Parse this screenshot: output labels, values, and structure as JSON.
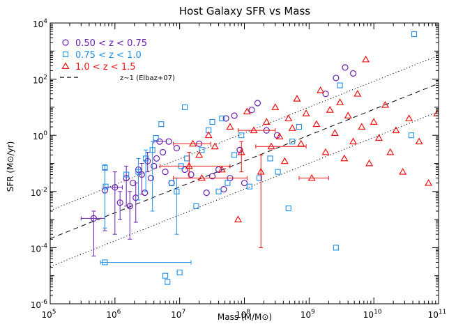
{
  "chart_data": {
    "type": "scatter",
    "title": "Host Galaxy SFR vs Mass",
    "xlabel": "Mass (M/M⊙)",
    "ylabel": "SFR (M⊙/yr)",
    "xscale": "log",
    "yscale": "log",
    "xlim": [
      100000,
      100000000000
    ],
    "ylim": [
      1e-06,
      10000
    ],
    "x_ticks": [
      {
        "value": 100000,
        "base": "10",
        "exp": "5"
      },
      {
        "value": 1000000,
        "base": "10",
        "exp": "6"
      },
      {
        "value": 10000000,
        "base": "10",
        "exp": "7"
      },
      {
        "value": 100000000,
        "base": "10",
        "exp": "8"
      },
      {
        "value": 1000000000,
        "base": "10",
        "exp": "9"
      },
      {
        "value": 10000000000,
        "base": "10",
        "exp": "10"
      },
      {
        "value": 100000000000,
        "base": "10",
        "exp": "11"
      }
    ],
    "y_ticks": [
      {
        "value": 1e-06,
        "base": "10",
        "exp": "-6"
      },
      {
        "value": 0.0001,
        "base": "10",
        "exp": "-4"
      },
      {
        "value": 0.01,
        "base": "10",
        "exp": "-2"
      },
      {
        "value": 1,
        "base": "10",
        "exp": "0"
      },
      {
        "value": 100,
        "base": "10",
        "exp": "2"
      },
      {
        "value": 10000,
        "base": "10",
        "exp": "4"
      }
    ],
    "legend_position": "top-left",
    "legend": [
      {
        "label": "0.50 < z < 0.75",
        "marker": "circle",
        "color": "#6a1fb0"
      },
      {
        "label": "0.75 < z < 1.0",
        "marker": "square",
        "color": "#1e90e8"
      },
      {
        "label": "1.0 < z < 1.5",
        "marker": "triangle",
        "color": "#ee1111"
      },
      {
        "label": "z~1 (Elbaz+07)",
        "marker": "dashed-line",
        "color": "#000000"
      }
    ],
    "reference_lines": [
      {
        "style": "dashed",
        "x": [
          100000,
          100000000000
        ],
        "y": [
          0.00021,
          70
        ]
      },
      {
        "style": "dotted",
        "x": [
          100000,
          100000000000
        ],
        "y": [
          0.0021,
          700
        ]
      },
      {
        "style": "dotted",
        "x": [
          100000,
          100000000000
        ],
        "y": [
          2.1e-05,
          7
        ]
      }
    ],
    "series": [
      {
        "name": "0.50 < z < 0.75",
        "marker": "circle",
        "color": "#6a1fb0",
        "points": [
          {
            "x": 470000,
            "y": 0.0011,
            "xerr": [
              300000,
              700000
            ],
            "yerr": [
              5e-05,
              0.002
            ]
          },
          {
            "x": 700000,
            "y": 0.011,
            "yerr": [
              0.0004,
              0.06
            ]
          },
          {
            "x": 1000000,
            "y": 0.014,
            "xerr": [
              700000,
              1300000
            ],
            "yerr": [
              0.0003,
              0.05
            ]
          },
          {
            "x": 1200000,
            "y": 0.004,
            "yerr": [
              0.001,
              0.01
            ]
          },
          {
            "x": 1500000,
            "y": 0.03,
            "yerr": [
              0.003,
              0.08
            ]
          },
          {
            "x": 1700000,
            "y": 0.003,
            "yerr": [
              0.0002,
              0.01
            ]
          },
          {
            "x": 1900000,
            "y": 0.02
          },
          {
            "x": 2100000,
            "y": 0.006,
            "yerr": [
              0.0008,
              0.02
            ]
          },
          {
            "x": 2300000,
            "y": 0.06
          },
          {
            "x": 2600000,
            "y": 0.04,
            "yerr": [
              0.008,
              0.1
            ]
          },
          {
            "x": 2900000,
            "y": 0.009
          },
          {
            "x": 3200000,
            "y": 0.12,
            "yerr": [
              0.05,
              0.25
            ]
          },
          {
            "x": 3600000,
            "y": 0.03
          },
          {
            "x": 4000000,
            "y": 0.08
          },
          {
            "x": 4400000,
            "y": 0.15
          },
          {
            "x": 4900000,
            "y": 0.6,
            "xerr": [
              4000000,
              6200000
            ]
          },
          {
            "x": 5500000,
            "y": 0.25
          },
          {
            "x": 6000000,
            "y": 0.05
          },
          {
            "x": 6800000,
            "y": 0.6
          },
          {
            "x": 7500000,
            "y": 0.02
          },
          {
            "x": 9000000,
            "y": 0.35
          },
          {
            "x": 12000000,
            "y": 0.06
          },
          {
            "x": 15000000,
            "y": 0.04
          },
          {
            "x": 20000000,
            "y": 0.5
          },
          {
            "x": 26000000,
            "y": 0.009
          },
          {
            "x": 32000000,
            "y": 0.035
          },
          {
            "x": 40000000,
            "y": 0.06
          },
          {
            "x": 48000000,
            "y": 0.012
          },
          {
            "x": 52000000,
            "y": 4.0
          },
          {
            "x": 60000000,
            "y": 0.03
          },
          {
            "x": 70000000,
            "y": 5.0
          },
          {
            "x": 85000000,
            "y": 0.3
          },
          {
            "x": 100000000,
            "y": 0.02
          },
          {
            "x": 130000000,
            "y": 8.0
          },
          {
            "x": 160000000,
            "y": 14
          },
          {
            "x": 220000000,
            "y": 1.5
          },
          {
            "x": 320000000,
            "y": 1.0
          },
          {
            "x": 1800000000,
            "y": 30
          },
          {
            "x": 2600000000,
            "y": 110
          },
          {
            "x": 3600000000,
            "y": 260
          },
          {
            "x": 4800000000,
            "y": 160
          }
        ]
      },
      {
        "name": "0.75 < z < 1.0",
        "marker": "square",
        "color": "#1e90e8",
        "points": [
          {
            "x": 700000,
            "y": 3e-05,
            "xerr": [
              600000,
              15000000
            ]
          },
          {
            "x": 700000,
            "y": 0.07,
            "yerr": [
              0.0005,
              0.09
            ]
          },
          {
            "x": 720000,
            "y": 0.015
          },
          {
            "x": 1500000,
            "y": 0.04
          },
          {
            "x": 2300000,
            "y": 0.05,
            "yerr": [
              0.005,
              0.15
            ]
          },
          {
            "x": 3000000,
            "y": 0.15,
            "yerr": [
              0.01,
              0.3
            ]
          },
          {
            "x": 3800000,
            "y": 0.3,
            "yerr": [
              0.002,
              0.6
            ]
          },
          {
            "x": 4300000,
            "y": 0.8
          },
          {
            "x": 5200000,
            "y": 2.5
          },
          {
            "x": 6000000,
            "y": 1e-05
          },
          {
            "x": 6500000,
            "y": 6e-06
          },
          {
            "x": 7500000,
            "y": 0.02
          },
          {
            "x": 9000000,
            "y": 0.01,
            "yerr": [
              0.0003,
              0.03
            ]
          },
          {
            "x": 10000000,
            "y": 1.3e-05
          },
          {
            "x": 10500000,
            "y": 0.08
          },
          {
            "x": 12000000,
            "y": 10.0
          },
          {
            "x": 13000000,
            "y": 0.15
          },
          {
            "x": 18000000,
            "y": 0.003
          },
          {
            "x": 22000000,
            "y": 0.3
          },
          {
            "x": 28000000,
            "y": 1.5
          },
          {
            "x": 32000000,
            "y": 3.0
          },
          {
            "x": 40000000,
            "y": 0.01
          },
          {
            "x": 45000000,
            "y": 4.0
          },
          {
            "x": 55000000,
            "y": 0.02
          },
          {
            "x": 70000000,
            "y": 0.2
          },
          {
            "x": 90000000,
            "y": 1.0
          },
          {
            "x": 120000000,
            "y": 0.015
          },
          {
            "x": 170000000,
            "y": 0.03
          },
          {
            "x": 250000000,
            "y": 0.15
          },
          {
            "x": 330000000,
            "y": 0.05
          },
          {
            "x": 480000000,
            "y": 0.0025
          },
          {
            "x": 550000000,
            "y": 0.6
          },
          {
            "x": 700000000,
            "y": 2.0
          },
          {
            "x": 2600000000,
            "y": 0.0001
          },
          {
            "x": 3000000000,
            "y": 60
          },
          {
            "x": 38000000000,
            "y": 1.0
          },
          {
            "x": 42000000000,
            "y": 4000
          }
        ]
      },
      {
        "name": "1.0 < z < 1.5",
        "marker": "triangle",
        "color": "#ee1111",
        "points": [
          {
            "x": 14000000,
            "y": 0.08,
            "xerr": [
              5000000,
              60000000
            ],
            "yerr": [
              0.03,
              0.25
            ]
          },
          {
            "x": 16000000,
            "y": 0.5,
            "xerr": [
              8000000,
              30000000
            ]
          },
          {
            "x": 20000000,
            "y": 0.2
          },
          {
            "x": 22000000,
            "y": 0.03,
            "xerr": [
              8000000,
              110000000
            ]
          },
          {
            "x": 28000000,
            "y": 1.0
          },
          {
            "x": 35000000,
            "y": 0.4
          },
          {
            "x": 45000000,
            "y": 0.06
          },
          {
            "x": 60000000,
            "y": 2.0
          },
          {
            "x": 80000000,
            "y": 0.001
          },
          {
            "x": 90000000,
            "y": 0.25,
            "yerr": [
              0.05,
              0.6
            ]
          },
          {
            "x": 110000000,
            "y": 7.0
          },
          {
            "x": 140000000,
            "y": 1.5,
            "xerr": [
              80000000,
              300000000
            ]
          },
          {
            "x": 180000000,
            "y": 0.05,
            "yerr": [
              0.0001,
              0.2
            ]
          },
          {
            "x": 220000000,
            "y": 3.0
          },
          {
            "x": 260000000,
            "y": 0.4,
            "xerr": [
              150000000,
              900000000
            ]
          },
          {
            "x": 300000000,
            "y": 10
          },
          {
            "x": 350000000,
            "y": 0.9
          },
          {
            "x": 420000000,
            "y": 0.12
          },
          {
            "x": 480000000,
            "y": 4.0
          },
          {
            "x": 550000000,
            "y": 1.8
          },
          {
            "x": 650000000,
            "y": 20
          },
          {
            "x": 750000000,
            "y": 0.5
          },
          {
            "x": 900000000,
            "y": 6.0
          },
          {
            "x": 1100000000,
            "y": 0.03,
            "xerr": [
              700000000,
              2000000000
            ]
          },
          {
            "x": 1300000000,
            "y": 2.5
          },
          {
            "x": 1500000000,
            "y": 40
          },
          {
            "x": 1800000000,
            "y": 0.25
          },
          {
            "x": 2100000000,
            "y": 8.0
          },
          {
            "x": 2500000000,
            "y": 1.2
          },
          {
            "x": 3000000000,
            "y": 15
          },
          {
            "x": 3500000000,
            "y": 0.15
          },
          {
            "x": 4000000000,
            "y": 5.0
          },
          {
            "x": 4800000000,
            "y": 0.6
          },
          {
            "x": 5600000000,
            "y": 30
          },
          {
            "x": 6500000000,
            "y": 2.0
          },
          {
            "x": 7500000000,
            "y": 500
          },
          {
            "x": 8500000000,
            "y": 0.1
          },
          {
            "x": 10000000000,
            "y": 3.0
          },
          {
            "x": 12000000000,
            "y": 0.8
          },
          {
            "x": 15000000000,
            "y": 12
          },
          {
            "x": 18000000000,
            "y": 0.25
          },
          {
            "x": 22000000000,
            "y": 1.5
          },
          {
            "x": 28000000000,
            "y": 0.05
          },
          {
            "x": 35000000000,
            "y": 4.0
          },
          {
            "x": 50000000000,
            "y": 0.6
          },
          {
            "x": 70000000000,
            "y": 0.02
          },
          {
            "x": 95000000000,
            "y": 6.0
          }
        ]
      }
    ]
  }
}
